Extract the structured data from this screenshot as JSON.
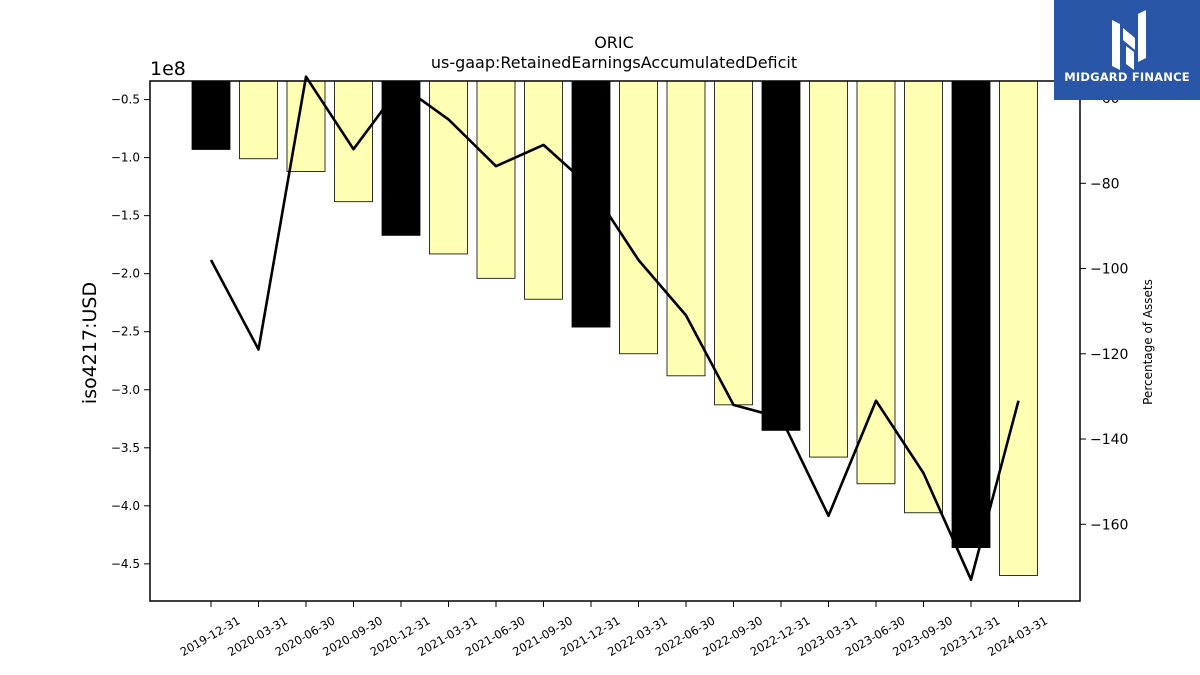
{
  "chart_data": {
    "type": "bar",
    "title": "ORIC",
    "subtitle": "us-gaap:RetainedEarningsAccumulatedDeficit",
    "ylabel": "iso4217:USD",
    "y_offset_label": "1e8",
    "y2label": "Percentage of Assets",
    "categories": [
      "2019-12-31",
      "2020-03-31",
      "2020-06-30",
      "2020-09-30",
      "2020-12-31",
      "2021-03-31",
      "2021-06-30",
      "2021-09-30",
      "2021-12-31",
      "2022-03-31",
      "2022-06-30",
      "2022-09-30",
      "2022-12-31",
      "2023-03-31",
      "2023-06-30",
      "2023-09-30",
      "2023-12-31",
      "2024-03-31"
    ],
    "series": [
      {
        "axis": "left",
        "kind": "bar",
        "values": [
          -0.93,
          -1.01,
          -1.12,
          -1.38,
          -1.67,
          -1.83,
          -2.04,
          -2.22,
          -2.46,
          -2.69,
          -2.88,
          -3.13,
          -3.35,
          -3.58,
          -3.81,
          -4.06,
          -4.36,
          -4.6
        ]
      },
      {
        "axis": "right",
        "kind": "line",
        "values": [
          -98,
          -119,
          -55,
          -72,
          -57,
          -65,
          -76,
          -71,
          -81,
          -98,
          -111,
          -132,
          -135,
          -158,
          -131,
          -148,
          -173,
          -131
        ]
      }
    ],
    "bar_colors": [
      "#000000",
      "#ffffb3",
      "#ffffb3",
      "#ffffb3",
      "#000000",
      "#ffffb3",
      "#ffffb3",
      "#ffffb3",
      "#000000",
      "#ffffb3",
      "#ffffb3",
      "#ffffb3",
      "#000000",
      "#ffffb3",
      "#ffffb3",
      "#ffffb3",
      "#000000",
      "#ffffb3"
    ],
    "line_color": "#000000",
    "ylim": [
      -4.82,
      -0.34
    ],
    "y2lim": [
      -178,
      -56
    ],
    "yticks": [
      -0.5,
      -1.0,
      -1.5,
      -2.0,
      -2.5,
      -3.0,
      -3.5,
      -4.0,
      -4.5
    ],
    "ytick_labels": [
      "−0.5",
      "−1.0",
      "−1.5",
      "−2.0",
      "−2.5",
      "−3.0",
      "−3.5",
      "−4.0",
      "−4.5"
    ],
    "y2ticks": [
      -60,
      -80,
      -100,
      -120,
      -140,
      -160
    ],
    "y2tick_labels": [
      "−60",
      "−80",
      "−100",
      "−120",
      "−140",
      "−160"
    ],
    "grid": false,
    "legend": "none"
  },
  "logo": {
    "text": "MIDGARD FINANCE",
    "bg": "#2a56a8"
  }
}
